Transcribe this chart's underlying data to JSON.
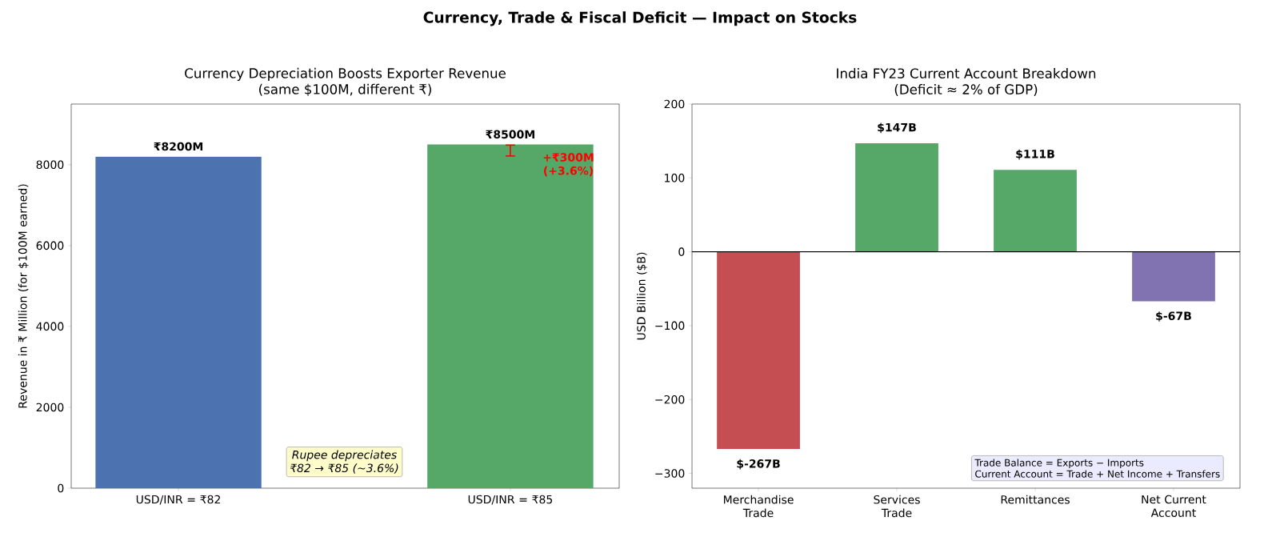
{
  "chart_data": [
    {
      "type": "bar",
      "title": "Currency Depreciation Boosts Exporter Revenue",
      "subtitle": "(same $100M, different ₹)",
      "ylabel": "Revenue in ₹ Million (for $100M earned)",
      "categories": [
        "USD/INR = ₹82",
        "USD/INR = ₹85"
      ],
      "values": [
        8200,
        8500
      ],
      "colors": [
        "#4c72b0",
        "#55a868"
      ],
      "value_labels": [
        "₹8200M",
        "₹8500M"
      ],
      "ylim": [
        0,
        9500
      ],
      "yticks": [
        0,
        2000,
        4000,
        6000,
        8000
      ],
      "annotations": [
        "Currency, Trade & Fiscal Deficit — Impact on Stocks",
        "Rupee depreciates",
        "₹82 → ₹85 (~3.6%)",
        "+₹300M (+3.6%)"
      ]
    },
    {
      "type": "bar",
      "title": "India FY23 Current Account Breakdown",
      "subtitle": "(Deficit ≈ 2% of GDP)",
      "ylabel": "USD Billion ($B)",
      "categories": [
        "Merchandise Trade",
        "Services Trade",
        "Remittances",
        "Net Current Account"
      ],
      "values": [
        -267,
        147,
        111,
        -67
      ],
      "colors": [
        "#c44e52",
        "#55a868",
        "#55a868",
        "#8172b2"
      ],
      "value_labels": [
        "$-267B",
        "$147B",
        "$111B",
        "$-67B"
      ],
      "ylim": [
        -320,
        200
      ],
      "yticks": [
        {
          "value": -300,
          "label": "−300"
        },
        {
          "value": -200,
          "label": "−200"
        },
        {
          "value": -100,
          "label": "−100"
        },
        0,
        100,
        200
      ],
      "ref_lines": [
        {
          "axis": "y",
          "value": 0,
          "color": "#000000"
        }
      ],
      "annotations": [
        "Trade Balance = Exports − Imports",
        "Current Account = Trade + Net Income + Transfers"
      ]
    }
  ]
}
